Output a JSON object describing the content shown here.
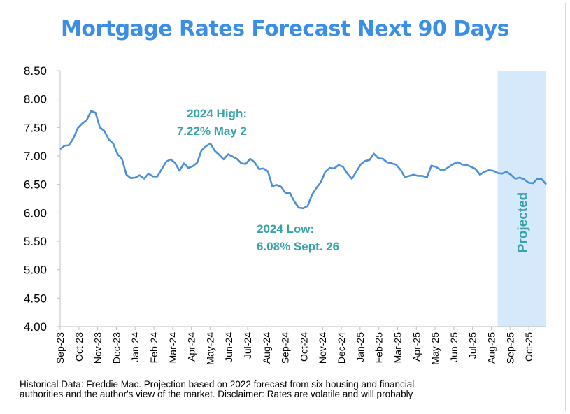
{
  "chart_data": {
    "type": "line",
    "title": "Mortgage Rates Forecast Next 90 Days",
    "xlabel": "",
    "ylabel": "",
    "ylim": [
      4.0,
      8.5
    ],
    "y_ticks": [
      "4.00",
      "4.50",
      "5.00",
      "5.50",
      "6.00",
      "6.50",
      "7.00",
      "7.50",
      "8.00",
      "8.50"
    ],
    "x_tick_labels": [
      "Sep-23",
      "Oct-23",
      "Nov-23",
      "Dec-23",
      "Jan-24",
      "Feb-24",
      "Mar-24",
      "Apr-24",
      "May-24",
      "Jun-24",
      "Jul-24",
      "Aug-24",
      "Sep-24",
      "Oct-24",
      "Nov-24",
      "Dec-24",
      "Jan-25",
      "Feb-25",
      "Mar-25",
      "Apr-25",
      "May-25",
      "Jun-25",
      "Jul-25",
      "Aug-25",
      "Sep-25",
      "Oct-25"
    ],
    "grid": false,
    "series": [
      {
        "values": [
          7.12,
          7.18,
          7.19,
          7.31,
          7.49,
          7.57,
          7.63,
          7.79,
          7.76,
          7.5,
          7.44,
          7.29,
          7.22,
          7.03,
          6.95,
          6.67,
          6.61,
          6.62,
          6.66,
          6.6,
          6.69,
          6.64,
          6.64,
          6.77,
          6.9,
          6.94,
          6.88,
          6.74,
          6.87,
          6.79,
          6.82,
          6.88,
          7.1,
          7.17,
          7.22,
          7.09,
          7.02,
          6.94,
          7.03,
          6.99,
          6.95,
          6.87,
          6.86,
          6.95,
          6.89,
          6.77,
          6.78,
          6.73,
          6.47,
          6.49,
          6.46,
          6.35,
          6.35,
          6.2,
          6.09,
          6.08,
          6.12,
          6.32,
          6.44,
          6.54,
          6.72,
          6.79,
          6.78,
          6.84,
          6.81,
          6.69,
          6.6,
          6.72,
          6.85,
          6.91,
          6.93,
          7.04,
          6.96,
          6.95,
          6.89,
          6.87,
          6.85,
          6.76,
          6.63,
          6.65,
          6.67,
          6.65,
          6.65,
          6.62,
          6.83,
          6.81,
          6.76,
          6.76,
          6.81,
          6.86,
          6.89,
          6.85,
          6.84,
          6.81,
          6.77,
          6.67,
          6.72,
          6.75,
          6.74,
          6.7,
          6.69,
          6.72,
          6.67,
          6.6,
          6.62,
          6.59,
          6.53,
          6.52,
          6.6,
          6.59,
          6.5
        ]
      }
    ],
    "projected_region": {
      "label": "Projected",
      "start_index": 99,
      "end_index": 110
    },
    "annotations": [
      {
        "line1": "2024 High:",
        "line2": "7.22% May 2"
      },
      {
        "line1": "2024 Low:",
        "line2": "6.08% Sept. 26"
      }
    ]
  },
  "footnote": {
    "line1": "Historical Data: Freddie Mac. Projection based on 2022 forecast from six housing and financial",
    "line2": "authorities and the author's view of the market. Disclaimer: Rates are volatile and will probably"
  },
  "colors": {
    "title": "#3a8ee6",
    "line": "#4a90d9",
    "projected_fill": "#d6e9fb",
    "annotation": "#3aa3a8",
    "axis": "#bfbfbf",
    "text": "#000000"
  }
}
